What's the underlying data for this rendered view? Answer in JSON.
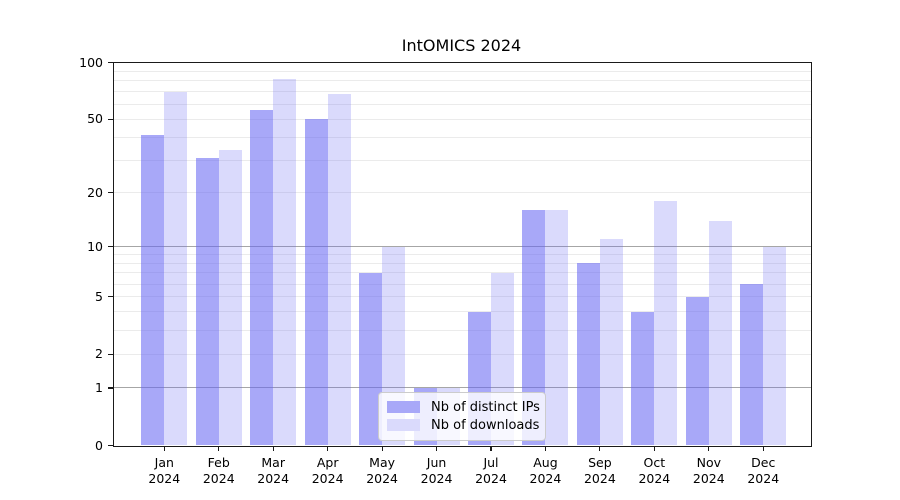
{
  "title": "IntOMICS 2024",
  "chart_data": {
    "type": "bar",
    "title": "IntOMICS 2024",
    "categories": [
      "Jan",
      "Feb",
      "Mar",
      "Apr",
      "May",
      "Jun",
      "Jul",
      "Aug",
      "Sep",
      "Oct",
      "Nov",
      "Dec"
    ],
    "year_label": "2024",
    "series": [
      {
        "name": "Nb of distinct IPs",
        "key": "ips",
        "values": [
          41,
          31,
          56,
          50,
          7,
          1,
          4,
          16,
          8,
          4,
          5,
          6
        ]
      },
      {
        "name": "Nb of downloads",
        "key": "downloads",
        "values": [
          70,
          34,
          82,
          68,
          10,
          1,
          7,
          16,
          11,
          18,
          14,
          10
        ]
      }
    ],
    "yscale": "log1p",
    "ylim": [
      0,
      100
    ],
    "y_ticks": [
      0,
      1,
      2,
      5,
      10,
      20,
      50,
      100
    ],
    "y_grid_major": [
      1,
      10
    ],
    "y_grid_minor": [
      2,
      3,
      4,
      5,
      6,
      7,
      8,
      9,
      20,
      30,
      40,
      50,
      60,
      70,
      80,
      90
    ],
    "grid": true,
    "legend_position": "lower center"
  },
  "colors": {
    "ips": "rgba(100,100,242,0.56)",
    "downloads": "rgba(100,100,242,0.24)",
    "ips_hex": "#a8a8f8",
    "downloads_hex": "#dadafc",
    "grid_minor": "#ebebeb",
    "grid_major": "#a6a6a6",
    "axis": "#1a1a1a",
    "legend_border": "#cccccc"
  }
}
